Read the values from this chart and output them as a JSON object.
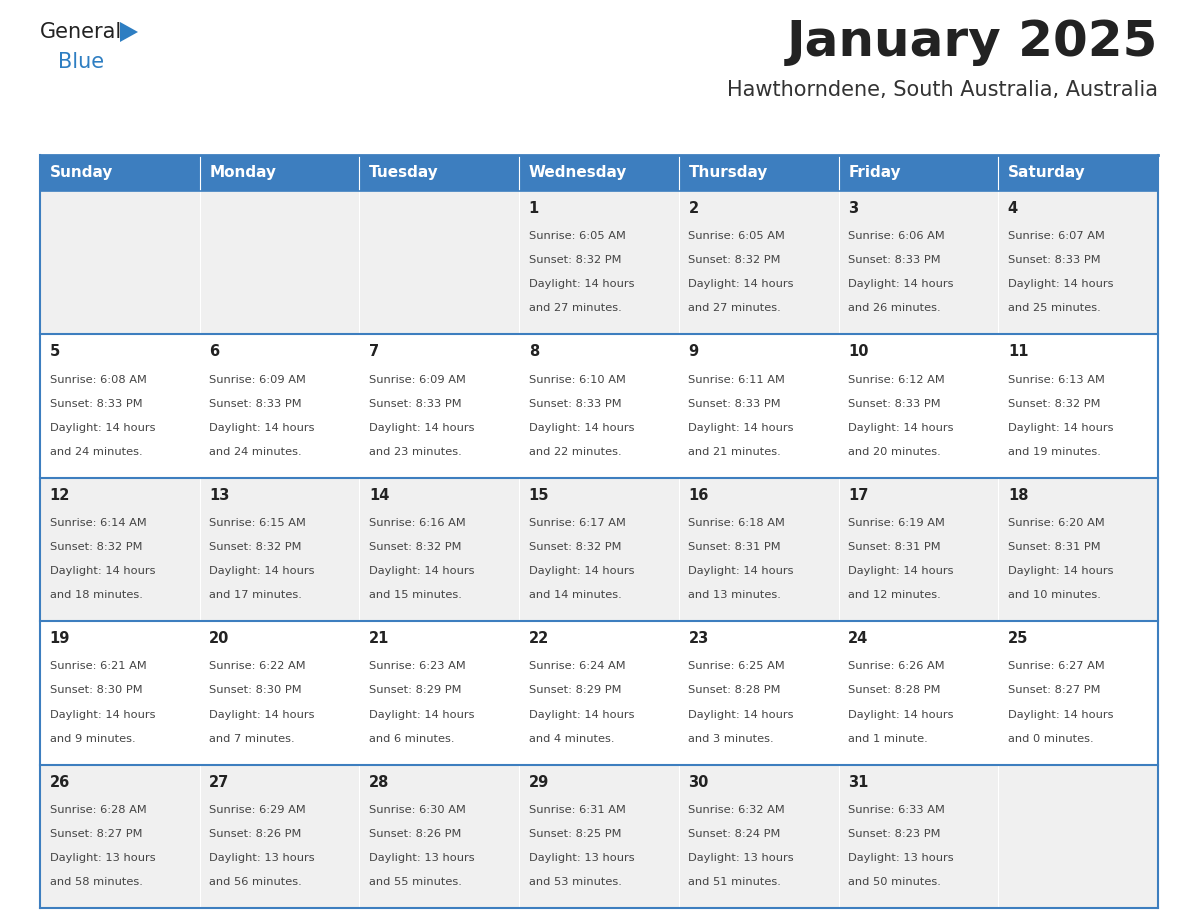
{
  "title": "January 2025",
  "subtitle": "Hawthorndene, South Australia, Australia",
  "days_of_week": [
    "Sunday",
    "Monday",
    "Tuesday",
    "Wednesday",
    "Thursday",
    "Friday",
    "Saturday"
  ],
  "header_bg": "#3d7ebf",
  "header_text_color": "#ffffff",
  "row_bg_odd": "#f0f0f0",
  "row_bg_even": "#ffffff",
  "cell_border_color": "#3d7ebf",
  "title_color": "#222222",
  "subtitle_color": "#333333",
  "day_number_color": "#222222",
  "cell_text_color": "#444444",
  "logo_general_color": "#222222",
  "logo_blue_color": "#2e7ec2",
  "calendar_data": {
    "week1": {
      "Sunday": null,
      "Monday": null,
      "Tuesday": null,
      "Wednesday": {
        "day": 1,
        "sunrise": "6:05 AM",
        "sunset": "8:32 PM",
        "daylight_line1": "14 hours",
        "daylight_line2": "and 27 minutes."
      },
      "Thursday": {
        "day": 2,
        "sunrise": "6:05 AM",
        "sunset": "8:32 PM",
        "daylight_line1": "14 hours",
        "daylight_line2": "and 27 minutes."
      },
      "Friday": {
        "day": 3,
        "sunrise": "6:06 AM",
        "sunset": "8:33 PM",
        "daylight_line1": "14 hours",
        "daylight_line2": "and 26 minutes."
      },
      "Saturday": {
        "day": 4,
        "sunrise": "6:07 AM",
        "sunset": "8:33 PM",
        "daylight_line1": "14 hours",
        "daylight_line2": "and 25 minutes."
      }
    },
    "week2": {
      "Sunday": {
        "day": 5,
        "sunrise": "6:08 AM",
        "sunset": "8:33 PM",
        "daylight_line1": "14 hours",
        "daylight_line2": "and 24 minutes."
      },
      "Monday": {
        "day": 6,
        "sunrise": "6:09 AM",
        "sunset": "8:33 PM",
        "daylight_line1": "14 hours",
        "daylight_line2": "and 24 minutes."
      },
      "Tuesday": {
        "day": 7,
        "sunrise": "6:09 AM",
        "sunset": "8:33 PM",
        "daylight_line1": "14 hours",
        "daylight_line2": "and 23 minutes."
      },
      "Wednesday": {
        "day": 8,
        "sunrise": "6:10 AM",
        "sunset": "8:33 PM",
        "daylight_line1": "14 hours",
        "daylight_line2": "and 22 minutes."
      },
      "Thursday": {
        "day": 9,
        "sunrise": "6:11 AM",
        "sunset": "8:33 PM",
        "daylight_line1": "14 hours",
        "daylight_line2": "and 21 minutes."
      },
      "Friday": {
        "day": 10,
        "sunrise": "6:12 AM",
        "sunset": "8:33 PM",
        "daylight_line1": "14 hours",
        "daylight_line2": "and 20 minutes."
      },
      "Saturday": {
        "day": 11,
        "sunrise": "6:13 AM",
        "sunset": "8:32 PM",
        "daylight_line1": "14 hours",
        "daylight_line2": "and 19 minutes."
      }
    },
    "week3": {
      "Sunday": {
        "day": 12,
        "sunrise": "6:14 AM",
        "sunset": "8:32 PM",
        "daylight_line1": "14 hours",
        "daylight_line2": "and 18 minutes."
      },
      "Monday": {
        "day": 13,
        "sunrise": "6:15 AM",
        "sunset": "8:32 PM",
        "daylight_line1": "14 hours",
        "daylight_line2": "and 17 minutes."
      },
      "Tuesday": {
        "day": 14,
        "sunrise": "6:16 AM",
        "sunset": "8:32 PM",
        "daylight_line1": "14 hours",
        "daylight_line2": "and 15 minutes."
      },
      "Wednesday": {
        "day": 15,
        "sunrise": "6:17 AM",
        "sunset": "8:32 PM",
        "daylight_line1": "14 hours",
        "daylight_line2": "and 14 minutes."
      },
      "Thursday": {
        "day": 16,
        "sunrise": "6:18 AM",
        "sunset": "8:31 PM",
        "daylight_line1": "14 hours",
        "daylight_line2": "and 13 minutes."
      },
      "Friday": {
        "day": 17,
        "sunrise": "6:19 AM",
        "sunset": "8:31 PM",
        "daylight_line1": "14 hours",
        "daylight_line2": "and 12 minutes."
      },
      "Saturday": {
        "day": 18,
        "sunrise": "6:20 AM",
        "sunset": "8:31 PM",
        "daylight_line1": "14 hours",
        "daylight_line2": "and 10 minutes."
      }
    },
    "week4": {
      "Sunday": {
        "day": 19,
        "sunrise": "6:21 AM",
        "sunset": "8:30 PM",
        "daylight_line1": "14 hours",
        "daylight_line2": "and 9 minutes."
      },
      "Monday": {
        "day": 20,
        "sunrise": "6:22 AM",
        "sunset": "8:30 PM",
        "daylight_line1": "14 hours",
        "daylight_line2": "and 7 minutes."
      },
      "Tuesday": {
        "day": 21,
        "sunrise": "6:23 AM",
        "sunset": "8:29 PM",
        "daylight_line1": "14 hours",
        "daylight_line2": "and 6 minutes."
      },
      "Wednesday": {
        "day": 22,
        "sunrise": "6:24 AM",
        "sunset": "8:29 PM",
        "daylight_line1": "14 hours",
        "daylight_line2": "and 4 minutes."
      },
      "Thursday": {
        "day": 23,
        "sunrise": "6:25 AM",
        "sunset": "8:28 PM",
        "daylight_line1": "14 hours",
        "daylight_line2": "and 3 minutes."
      },
      "Friday": {
        "day": 24,
        "sunrise": "6:26 AM",
        "sunset": "8:28 PM",
        "daylight_line1": "14 hours",
        "daylight_line2": "and 1 minute."
      },
      "Saturday": {
        "day": 25,
        "sunrise": "6:27 AM",
        "sunset": "8:27 PM",
        "daylight_line1": "14 hours",
        "daylight_line2": "and 0 minutes."
      }
    },
    "week5": {
      "Sunday": {
        "day": 26,
        "sunrise": "6:28 AM",
        "sunset": "8:27 PM",
        "daylight_line1": "13 hours",
        "daylight_line2": "and 58 minutes."
      },
      "Monday": {
        "day": 27,
        "sunrise": "6:29 AM",
        "sunset": "8:26 PM",
        "daylight_line1": "13 hours",
        "daylight_line2": "and 56 minutes."
      },
      "Tuesday": {
        "day": 28,
        "sunrise": "6:30 AM",
        "sunset": "8:26 PM",
        "daylight_line1": "13 hours",
        "daylight_line2": "and 55 minutes."
      },
      "Wednesday": {
        "day": 29,
        "sunrise": "6:31 AM",
        "sunset": "8:25 PM",
        "daylight_line1": "13 hours",
        "daylight_line2": "and 53 minutes."
      },
      "Thursday": {
        "day": 30,
        "sunrise": "6:32 AM",
        "sunset": "8:24 PM",
        "daylight_line1": "13 hours",
        "daylight_line2": "and 51 minutes."
      },
      "Friday": {
        "day": 31,
        "sunrise": "6:33 AM",
        "sunset": "8:23 PM",
        "daylight_line1": "13 hours",
        "daylight_line2": "and 50 minutes."
      },
      "Saturday": null
    }
  }
}
